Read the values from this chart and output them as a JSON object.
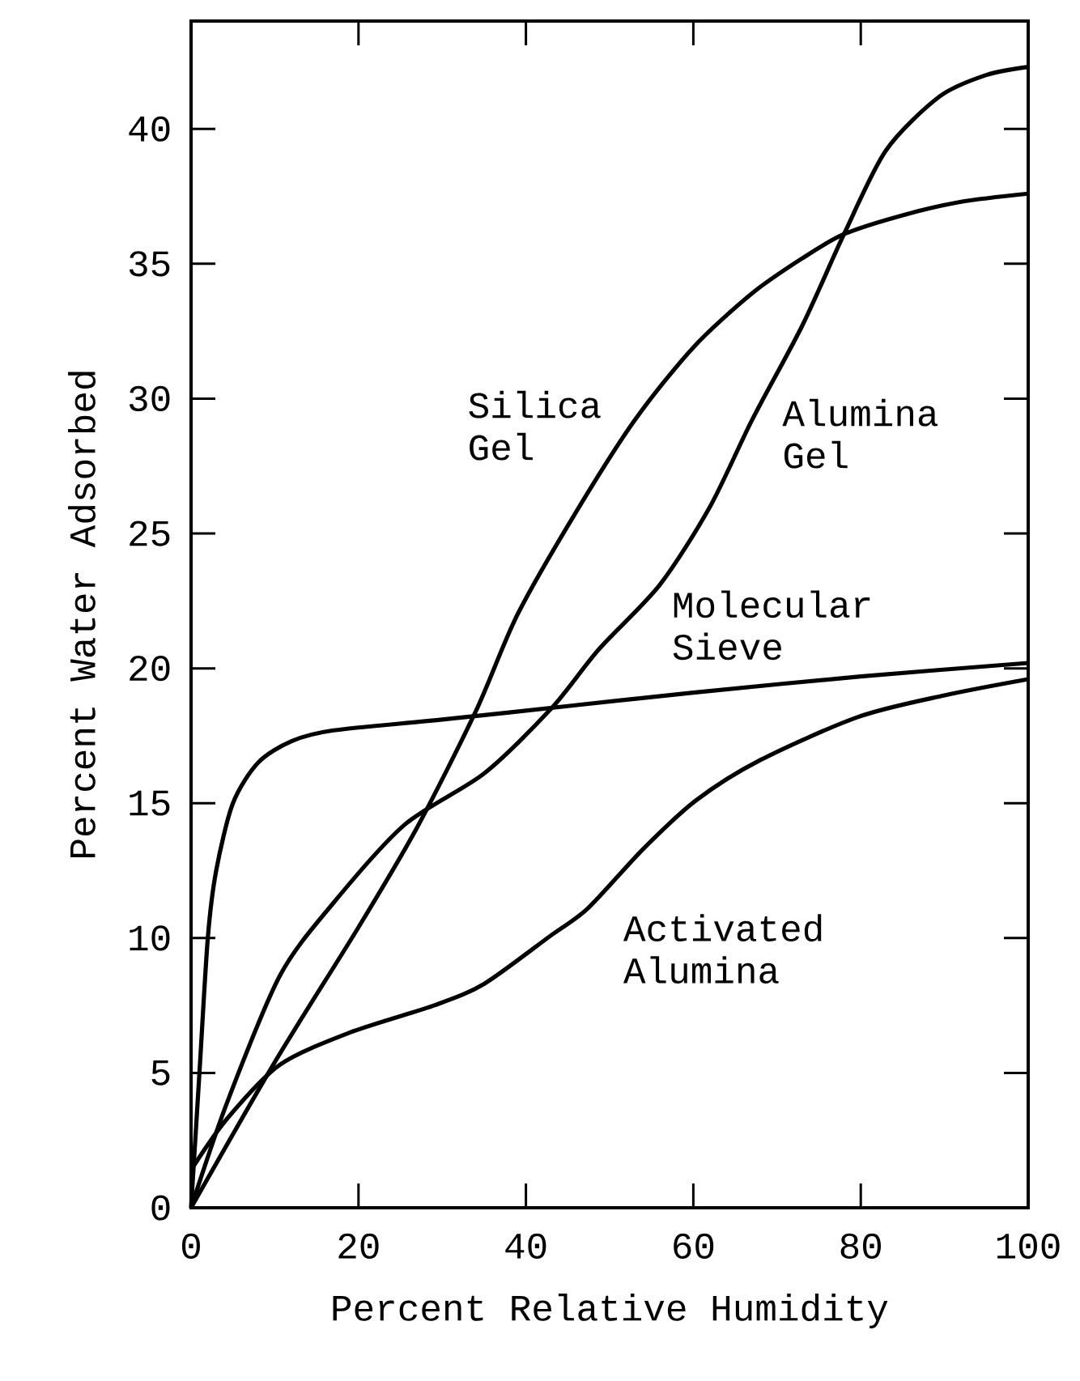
{
  "chart_data": {
    "type": "line",
    "xlabel": "Percent Relative Humidity",
    "ylabel": "Percent Water Adsorbed",
    "xlim": [
      0,
      100
    ],
    "ylim": [
      0,
      44
    ],
    "xticks": [
      0,
      20,
      40,
      60,
      80,
      100
    ],
    "yticks": [
      0,
      5,
      10,
      15,
      20,
      25,
      30,
      35,
      40
    ],
    "series": [
      {
        "name": "Silica Gel",
        "color": "#000000",
        "x": [
          0,
          10,
          20,
          27,
          34,
          39,
          46,
          53,
          60,
          67,
          73,
          78,
          85,
          92,
          100
        ],
        "values": [
          0,
          5.4,
          10.4,
          14.1,
          18.4,
          22,
          25.8,
          29.2,
          31.9,
          33.9,
          35.2,
          36.1,
          36.8,
          37.3,
          37.6
        ]
      },
      {
        "name": "Alumina Gel",
        "color": "#000000",
        "x": [
          0,
          4.3,
          10.6,
          17,
          25.5,
          35,
          43,
          48.7,
          56,
          62,
          67,
          73,
          78,
          83,
          89.4,
          95,
          100
        ],
        "values": [
          0,
          3.9,
          8.6,
          11.3,
          14.2,
          16.1,
          18.5,
          20.7,
          23.1,
          26,
          29.2,
          32.7,
          36.1,
          39.2,
          41.2,
          42,
          42.3
        ]
      },
      {
        "name": "Molecular Sieve",
        "color": "#000000",
        "x": [
          0,
          1,
          2,
          3,
          5,
          8,
          12,
          17,
          30,
          45,
          60,
          80,
          100
        ],
        "values": [
          0,
          5,
          10,
          12.5,
          15,
          16.5,
          17.3,
          17.7,
          18.1,
          18.6,
          19.1,
          19.7,
          20.2
        ]
      },
      {
        "name": "Activated Alumina",
        "color": "#000000",
        "x": [
          0,
          4.3,
          10.6,
          19,
          29,
          35,
          43,
          47.4,
          54,
          60.3,
          68,
          79.7,
          90,
          100
        ],
        "values": [
          1.4,
          3.3,
          5.3,
          6.5,
          7.5,
          8.3,
          10.1,
          11.1,
          13.3,
          15.1,
          16.6,
          18.2,
          19,
          19.6
        ]
      }
    ]
  }
}
